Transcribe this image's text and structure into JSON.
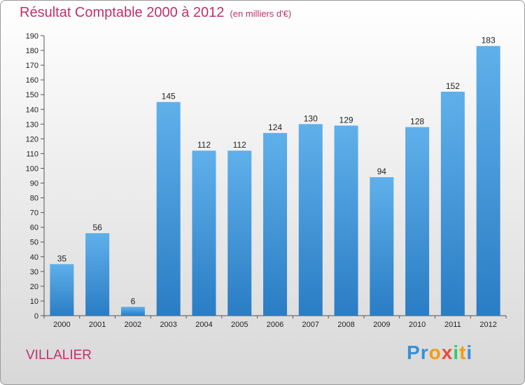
{
  "chart_data": {
    "type": "bar",
    "title": "Résultat Comptable 2000 à 2012",
    "subtitle": "(en milliers d'€)",
    "categories": [
      "2000",
      "2001",
      "2002",
      "2003",
      "2004",
      "2005",
      "2006",
      "2007",
      "2008",
      "2009",
      "2010",
      "2011",
      "2012"
    ],
    "values": [
      35,
      56,
      6,
      145,
      112,
      112,
      124,
      130,
      129,
      94,
      128,
      152,
      183
    ],
    "ylim": [
      0,
      190
    ],
    "yticks": [
      0,
      10,
      20,
      30,
      40,
      50,
      60,
      70,
      80,
      90,
      100,
      110,
      120,
      130,
      140,
      150,
      160,
      170,
      180,
      190
    ],
    "grid": false,
    "bar_color": "#4a9de0"
  },
  "commune": "VILLALIER",
  "brand": {
    "letters": [
      "P",
      "r",
      "o",
      "x",
      "i",
      "t",
      "i"
    ],
    "colors": [
      "#3a8fd8",
      "#3a8fd8",
      "#f39c12",
      "#e74c3c",
      "#2ecc71",
      "#f39c12",
      "#3a8fd8"
    ]
  }
}
